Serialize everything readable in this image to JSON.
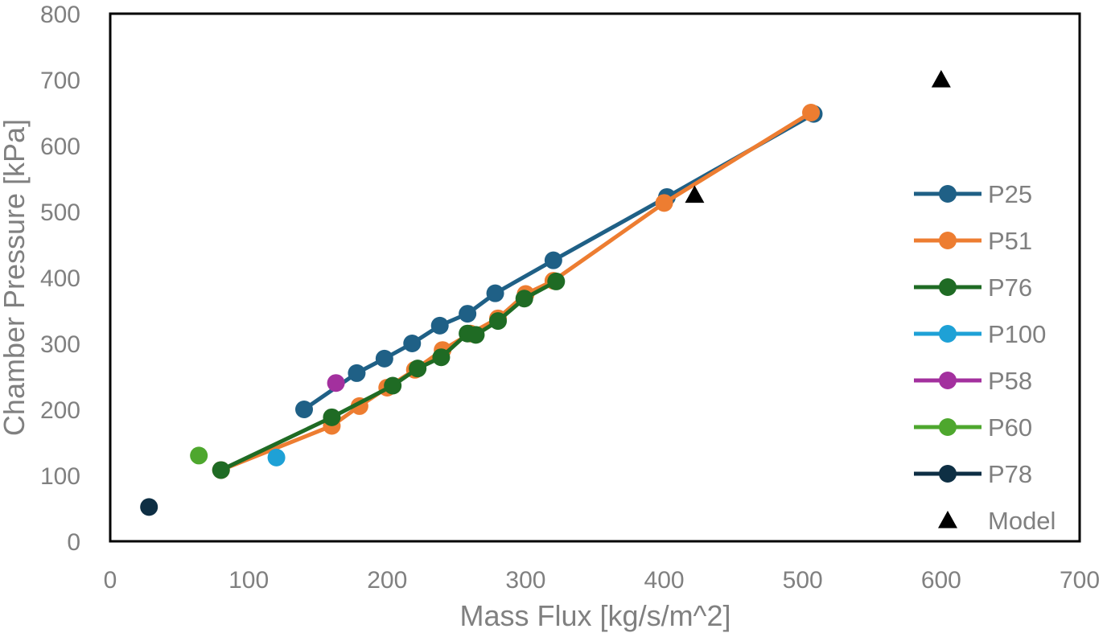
{
  "chart_data": {
    "type": "scatter",
    "title": "",
    "xlabel": "Mass Flux [kg/s/m^2]",
    "ylabel": "Chamber Pressure [kPa]",
    "xlim": [
      0,
      700
    ],
    "ylim": [
      0,
      800
    ],
    "xticks": [
      "0",
      "100",
      "200",
      "300",
      "400",
      "500",
      "600",
      "700"
    ],
    "yticks": [
      "0",
      "100",
      "200",
      "300",
      "400",
      "500",
      "600",
      "700",
      "800"
    ],
    "grid": false,
    "legend_position": "right",
    "series": [
      {
        "name": "P25",
        "color": "#1f6086",
        "mode": "line+marker",
        "x": [
          140,
          178,
          198,
          218,
          238,
          258,
          278,
          320,
          402,
          508
        ],
        "y": [
          200,
          255,
          277,
          300,
          327,
          345,
          376,
          426,
          522,
          648
        ]
      },
      {
        "name": "P51",
        "color": "#ed7d31",
        "mode": "line+marker",
        "x": [
          80,
          160,
          180,
          200,
          220,
          240,
          260,
          280,
          300,
          320,
          400,
          506
        ],
        "y": [
          108,
          175,
          205,
          233,
          260,
          290,
          315,
          338,
          375,
          395,
          513,
          650
        ]
      },
      {
        "name": "P76",
        "color": "#1f6b24",
        "mode": "line+marker",
        "x": [
          80,
          160,
          204,
          222,
          239,
          258,
          264,
          280,
          299,
          322
        ],
        "y": [
          108,
          188,
          236,
          262,
          279,
          315,
          313,
          334,
          368,
          394
        ]
      },
      {
        "name": "P100",
        "color": "#1ea1d6",
        "mode": "line+marker",
        "x": [
          120
        ],
        "y": [
          127
        ]
      },
      {
        "name": "P58",
        "color": "#a3309e",
        "mode": "line+marker",
        "x": [
          163
        ],
        "y": [
          240
        ]
      },
      {
        "name": "P60",
        "color": "#4ea72e",
        "mode": "line+marker",
        "x": [
          64
        ],
        "y": [
          130
        ]
      },
      {
        "name": "P78",
        "color": "#0e2f44",
        "mode": "line+marker",
        "x": [
          28
        ],
        "y": [
          52
        ]
      },
      {
        "name": "Model",
        "color": "#000000",
        "mode": "triangle",
        "x": [
          422,
          600
        ],
        "y": [
          525,
          700
        ]
      }
    ]
  }
}
